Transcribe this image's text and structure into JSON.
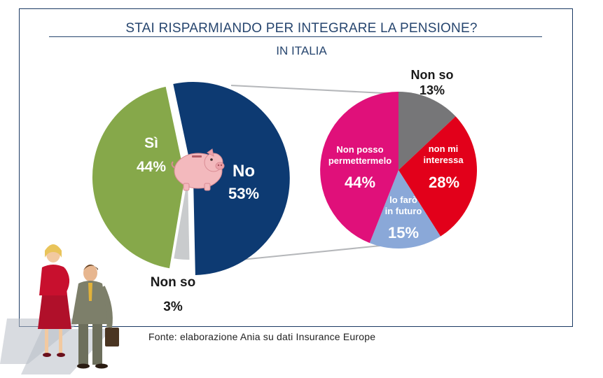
{
  "header": {
    "title": "STAI RISPARMIANDO PER INTEGRARE LA PENSIONE?",
    "subtitle": "IN ITALIA"
  },
  "source": "Fonte: elaborazione  Ania  su dati Insurance Europe",
  "colors": {
    "frame": "#1b3a63",
    "title": "#27466f",
    "si": "#86a84a",
    "no": "#0d3a72",
    "non_so_main": "#c9cbcd",
    "non_posso": "#e0107a",
    "non_mi_interessa": "#e2001a",
    "lo_faro": "#8aa8d8",
    "non_so_sub": "#767678"
  },
  "chart_data": [
    {
      "type": "pie",
      "title": "IN ITALIA",
      "slices": [
        {
          "label": "Sì",
          "value": 44,
          "value_label": "44%",
          "color": "#86a84a"
        },
        {
          "label": "No",
          "value": 53,
          "value_label": "53%",
          "color": "#0d3a72"
        },
        {
          "label": "Non so",
          "value": 3,
          "value_label": "3%",
          "color": "#c9cbcd"
        }
      ]
    },
    {
      "type": "pie",
      "breakdown_of": "No",
      "slices": [
        {
          "label": "Non so",
          "value": 13,
          "value_label": "13%",
          "color": "#767678"
        },
        {
          "label": "non mi interessa",
          "value": 28,
          "value_label": "28%",
          "color": "#e2001a"
        },
        {
          "label": "lo farò in futuro",
          "value": 15,
          "value_label": "15%",
          "color": "#8aa8d8"
        },
        {
          "label": "Non posso permettermelo",
          "value": 44,
          "value_label": "44%",
          "color": "#e0107a"
        }
      ]
    }
  ],
  "labels": {
    "si_name": "Sì",
    "si_value": "44%",
    "no_name": "No",
    "no_value": "53%",
    "nonso_name": "Non so",
    "nonso_value": "3%",
    "sub_nonso_name": "Non so",
    "sub_nonso_value": "13%",
    "sub_nonposso_line1": "Non posso",
    "sub_nonposso_line2": "permettermelo",
    "sub_nonposso_value": "44%",
    "sub_nonmi_line1": "non mi",
    "sub_nonmi_line2": "interessa",
    "sub_nonmi_value": "28%",
    "sub_lofaro_line1": "lo farò",
    "sub_lofaro_line2": "in futuro",
    "sub_lofaro_value": "15%"
  },
  "illustrations": [
    "piggy-bank-icon",
    "business-people-illustration"
  ]
}
